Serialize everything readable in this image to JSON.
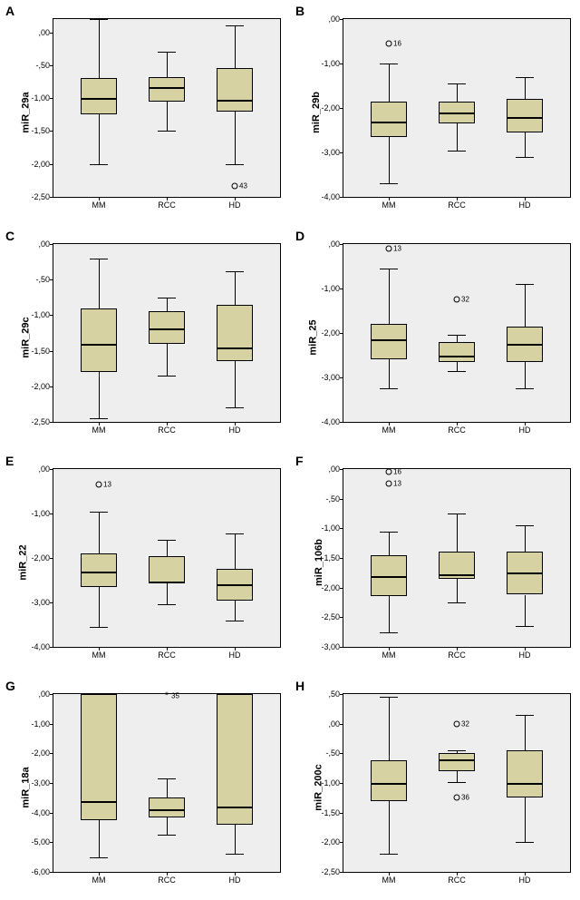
{
  "layout": {
    "categories": [
      "MM",
      "RCC",
      "HD"
    ],
    "box_fill": "#d6d2a2",
    "plot_bg": "#eeeeee",
    "panel_bg": "#ffffff",
    "border_color": "#000000",
    "tick_fontsize": 9,
    "label_fontsize": 11,
    "panel_label_fontsize": 14
  },
  "panels": [
    {
      "id": "A",
      "ylabel": "miR_29a",
      "ylim": [
        -2.5,
        0.2
      ],
      "ytick_step": 0.5,
      "y_decimals": 2,
      "boxes": [
        {
          "q1": -1.25,
          "med": -1.0,
          "q3": -0.7,
          "wlo": -2.0,
          "whi": 0.2
        },
        {
          "q1": -1.05,
          "med": -0.83,
          "q3": -0.68,
          "wlo": -1.5,
          "whi": -0.3
        },
        {
          "q1": -1.2,
          "med": -1.03,
          "q3": -0.55,
          "wlo": -2.0,
          "whi": 0.1
        }
      ],
      "outliers": [
        {
          "cat": 2,
          "val": -2.33,
          "label": "43",
          "sym": "o"
        }
      ]
    },
    {
      "id": "B",
      "ylabel": "miR_29b",
      "ylim": [
        -4.0,
        0.0
      ],
      "ytick_step": 1.0,
      "y_decimals": 2,
      "boxes": [
        {
          "q1": -2.65,
          "med": -2.3,
          "q3": -1.85,
          "wlo": -3.7,
          "whi": -1.0
        },
        {
          "q1": -2.35,
          "med": -2.1,
          "q3": -1.85,
          "wlo": -2.95,
          "whi": -1.45
        },
        {
          "q1": -2.55,
          "med": -2.2,
          "q3": -1.8,
          "wlo": -3.1,
          "whi": -1.3
        }
      ],
      "outliers": [
        {
          "cat": 0,
          "val": -0.55,
          "label": "16",
          "sym": "o"
        }
      ]
    },
    {
      "id": "C",
      "ylabel": "miR_29c",
      "ylim": [
        -2.5,
        0.0
      ],
      "ytick_step": 0.5,
      "y_decimals": 2,
      "boxes": [
        {
          "q1": -1.8,
          "med": -1.4,
          "q3": -0.9,
          "wlo": -2.45,
          "whi": -0.2
        },
        {
          "q1": -1.4,
          "med": -1.18,
          "q3": -0.95,
          "wlo": -1.85,
          "whi": -0.75
        },
        {
          "q1": -1.65,
          "med": -1.45,
          "q3": -0.85,
          "wlo": -2.3,
          "whi": -0.38
        }
      ],
      "outliers": []
    },
    {
      "id": "D",
      "ylabel": "miR_25",
      "ylim": [
        -4.0,
        0.0
      ],
      "ytick_step": 1.0,
      "y_decimals": 2,
      "boxes": [
        {
          "q1": -2.6,
          "med": -2.15,
          "q3": -1.8,
          "wlo": -3.25,
          "whi": -0.55
        },
        {
          "q1": -2.65,
          "med": -2.5,
          "q3": -2.2,
          "wlo": -2.85,
          "whi": -2.05
        },
        {
          "q1": -2.65,
          "med": -2.25,
          "q3": -1.85,
          "wlo": -3.25,
          "whi": -0.9
        }
      ],
      "outliers": [
        {
          "cat": 0,
          "val": -0.1,
          "label": "13",
          "sym": "o"
        },
        {
          "cat": 1,
          "val": -1.25,
          "label": "32",
          "sym": "o"
        }
      ]
    },
    {
      "id": "E",
      "ylabel": "miR_22",
      "ylim": [
        -4.0,
        0.0
      ],
      "ytick_step": 1.0,
      "y_decimals": 2,
      "boxes": [
        {
          "q1": -2.65,
          "med": -2.3,
          "q3": -1.9,
          "wlo": -3.55,
          "whi": -0.95
        },
        {
          "q1": -2.58,
          "med": -2.53,
          "q3": -1.95,
          "wlo": -3.05,
          "whi": -1.6
        },
        {
          "q1": -2.95,
          "med": -2.6,
          "q3": -2.25,
          "wlo": -3.4,
          "whi": -1.45
        }
      ],
      "outliers": [
        {
          "cat": 0,
          "val": -0.35,
          "label": "13",
          "sym": "o"
        }
      ]
    },
    {
      "id": "F",
      "ylabel": "miR_106b",
      "ylim": [
        -3.0,
        0.0
      ],
      "ytick_step": 0.5,
      "y_decimals": 2,
      "boxes": [
        {
          "q1": -2.15,
          "med": -1.8,
          "q3": -1.45,
          "wlo": -2.75,
          "whi": -1.05
        },
        {
          "q1": -1.85,
          "med": -1.78,
          "q3": -1.4,
          "wlo": -2.25,
          "whi": -0.75
        },
        {
          "q1": -2.12,
          "med": -1.75,
          "q3": -1.4,
          "wlo": -2.65,
          "whi": -0.95
        }
      ],
      "outliers": [
        {
          "cat": 0,
          "val": -0.05,
          "label": "16",
          "sym": "o"
        },
        {
          "cat": 0,
          "val": -0.25,
          "label": "13",
          "sym": "o"
        }
      ]
    },
    {
      "id": "G",
      "ylabel": "miR_18a",
      "ylim": [
        -6.0,
        0.0
      ],
      "ytick_step": 1.0,
      "y_decimals": 2,
      "boxes": [
        {
          "q1": -4.25,
          "med": -3.6,
          "q3": 0.0,
          "wlo": -5.5,
          "whi": 0.0
        },
        {
          "q1": -4.15,
          "med": -3.9,
          "q3": -3.5,
          "wlo": -4.75,
          "whi": -2.85
        },
        {
          "q1": -4.4,
          "med": -3.8,
          "q3": 0.0,
          "wlo": -5.4,
          "whi": 0.0
        }
      ],
      "outliers": [
        {
          "cat": 1,
          "val": -0.05,
          "label": "35",
          "sym": "*"
        }
      ]
    },
    {
      "id": "H",
      "ylabel": "miR_200c",
      "ylim": [
        -2.5,
        0.5
      ],
      "ytick_step": 0.5,
      "y_decimals": 2,
      "boxes": [
        {
          "q1": -1.3,
          "med": -1.0,
          "q3": -0.62,
          "wlo": -2.2,
          "whi": 0.45
        },
        {
          "q1": -0.8,
          "med": -0.6,
          "q3": -0.5,
          "wlo": -0.98,
          "whi": -0.45
        },
        {
          "q1": -1.25,
          "med": -1.0,
          "q3": -0.45,
          "wlo": -2.0,
          "whi": 0.15
        }
      ],
      "outliers": [
        {
          "cat": 1,
          "val": 0.0,
          "label": "32",
          "sym": "o"
        },
        {
          "cat": 1,
          "val": -1.25,
          "label": "36",
          "sym": "o"
        }
      ]
    }
  ]
}
